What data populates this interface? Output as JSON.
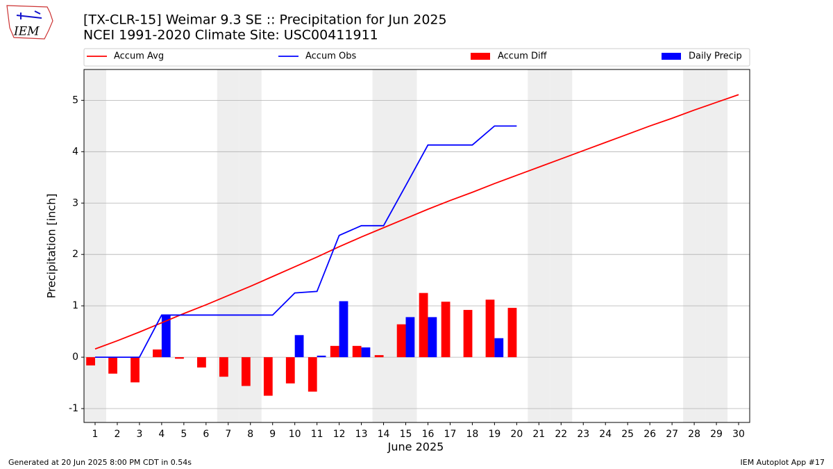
{
  "chart_data": {
    "type": "bar",
    "title": "[TX-CLR-15] Weimar 9.3 SE :: Precipitation for Jun 2025",
    "subtitle": "NCEI 1991-2020 Climate Site: USC00411911",
    "x_label": "June 2025",
    "y_label": "Precipitation [inch]",
    "x": [
      1,
      2,
      3,
      4,
      5,
      6,
      7,
      8,
      9,
      10,
      11,
      12,
      13,
      14,
      15,
      16,
      17,
      18,
      19,
      20,
      21,
      22,
      23,
      24,
      25,
      26,
      27,
      28,
      29,
      30
    ],
    "xlim": [
      0.5,
      30.5
    ],
    "xticks": [
      1,
      2,
      3,
      4,
      5,
      6,
      7,
      8,
      9,
      10,
      11,
      12,
      13,
      14,
      15,
      16,
      17,
      18,
      19,
      20,
      21,
      22,
      23,
      24,
      25,
      26,
      27,
      28,
      29,
      30
    ],
    "ylim": [
      -1.27,
      5.6
    ],
    "yticks": [
      -1,
      0,
      1,
      2,
      3,
      4,
      5
    ],
    "grid": true,
    "weekend_days": [
      1,
      7,
      8,
      14,
      15,
      21,
      22,
      28,
      29
    ],
    "series": [
      {
        "name": "Accum Avg",
        "type": "line",
        "color": "#ff0000",
        "values": [
          0.16,
          0.32,
          0.49,
          0.67,
          0.85,
          1.02,
          1.2,
          1.38,
          1.57,
          1.76,
          1.95,
          2.15,
          2.34,
          2.52,
          2.7,
          2.88,
          3.05,
          3.21,
          3.38,
          3.54,
          3.7,
          3.86,
          4.02,
          4.18,
          4.34,
          4.5,
          4.65,
          4.81,
          4.96,
          5.11
        ]
      },
      {
        "name": "Accum Obs",
        "type": "line",
        "color": "#0000ff",
        "values": [
          0,
          0,
          0,
          0.82,
          0.82,
          0.82,
          0.82,
          0.82,
          0.82,
          1.25,
          1.28,
          2.37,
          2.56,
          2.56,
          3.34,
          4.13,
          4.13,
          4.13,
          4.5,
          4.5,
          null,
          null,
          null,
          null,
          null,
          null,
          null,
          null,
          null,
          null
        ]
      },
      {
        "name": "Accum Diff",
        "type": "bar",
        "side": "left",
        "color": "#ff0000",
        "values": [
          -0.16,
          -0.32,
          -0.49,
          0.15,
          -0.03,
          -0.2,
          -0.38,
          -0.56,
          -0.75,
          -0.51,
          -0.67,
          0.22,
          0.22,
          0.04,
          0.64,
          1.25,
          1.08,
          0.92,
          1.12,
          0.96,
          null,
          null,
          null,
          null,
          null,
          null,
          null,
          null,
          null,
          null
        ]
      },
      {
        "name": "Daily Precip",
        "type": "bar",
        "side": "right",
        "color": "#0000ff",
        "values": [
          0,
          0,
          0,
          0.82,
          0,
          0,
          0,
          0,
          0,
          0.43,
          0.03,
          1.09,
          0.19,
          0,
          0.78,
          0.78,
          0,
          0,
          0.37,
          0,
          null,
          null,
          null,
          null,
          null,
          null,
          null,
          null,
          null,
          null
        ]
      }
    ],
    "footer_left": "Generated at 20 Jun 2025 8:00 PM CDT in 0.54s",
    "footer_right": "IEM Autoplot App #17",
    "logo_text": "IEM"
  }
}
